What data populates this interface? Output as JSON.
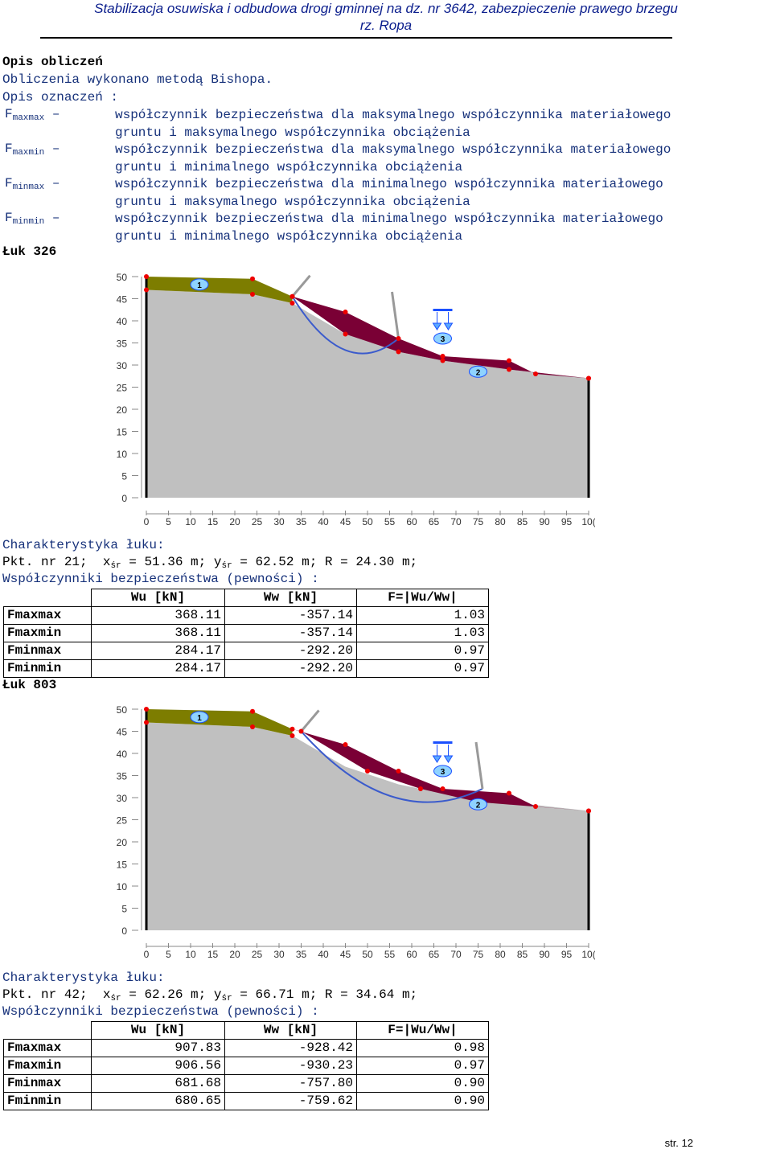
{
  "header": {
    "line1": "Stabilizacja osuwiska i odbudowa drogi gminnej na dz. nr 3642, zabezpieczenie prawego brzegu",
    "line2": "rz. Ropa"
  },
  "intro": {
    "title": "Opis obliczeń",
    "method": "Obliczenia wykonano metodą Bishopa.",
    "legend_title": "Opis oznaczeń :"
  },
  "legend": [
    {
      "sym": "F",
      "sub": "maxmax",
      "dash": "–",
      "l1": "współczynnik bezpieczeństwa dla maksymalnego współczynnika materiałowego",
      "l2": "gruntu i maksymalnego współczynnika obciążenia"
    },
    {
      "sym": "F",
      "sub": "maxmin",
      "dash": "–",
      "l1": "współczynnik bezpieczeństwa dla maksymalnego współczynnika materiałowego",
      "l2": "gruntu i minimalnego współczynnika obciążenia"
    },
    {
      "sym": "F",
      "sub": "minmax",
      "dash": "–",
      "l1": "współczynnik bezpieczeństwa dla minimalnego współczynnika materiałowego",
      "l2": "gruntu i maksymalnego współczynnika obciążenia"
    },
    {
      "sym": "F",
      "sub": "minmin",
      "dash": "–",
      "l1": "współczynnik bezpieczeństwa dla minimalnego współczynnika materiałowego",
      "l2": "gruntu i minimalnego współczynnika obciążenia"
    }
  ],
  "arcs": [
    {
      "title": "Łuk 326",
      "char_title": "Charakterystyka łuku:",
      "pkt": "Pkt. nr 21;",
      "x_label": "x",
      "x_sub": "śr",
      "x_val": " = 51.36 m;",
      "y_label": "y",
      "y_sub": "śr",
      "y_val": " = 62.52 m;",
      "r": "R = 24.30 m;",
      "coef_title": "Współczynniki bezpieczeństwa (pewności) :",
      "headers": [
        "Wu [kN]",
        "Ww [kN]",
        "F=|Wu/Ww|"
      ],
      "rows": [
        {
          "k": "Fmaxmax",
          "wu": "368.11",
          "ww": "-357.14",
          "f": "1.03"
        },
        {
          "k": "Fmaxmin",
          "wu": "368.11",
          "ww": "-357.14",
          "f": "1.03"
        },
        {
          "k": "Fminmax",
          "wu": "284.17",
          "ww": "-292.20",
          "f": "0.97"
        },
        {
          "k": "Fminmin",
          "wu": "284.17",
          "ww": "-292.20",
          "f": "0.97"
        }
      ]
    },
    {
      "title": "Łuk 803",
      "char_title": "Charakterystyka łuku:",
      "pkt": "Pkt. nr 42;",
      "x_label": "x",
      "x_sub": "śr",
      "x_val": " = 62.26 m;",
      "y_label": "y",
      "y_sub": "śr",
      "y_val": " = 66.71 m;",
      "r": "R = 34.64 m;",
      "coef_title": "Współczynniki bezpieczeństwa (pewności) :",
      "headers": [
        "Wu [kN]",
        "Ww [kN]",
        "F=|Wu/Ww|"
      ],
      "rows": [
        {
          "k": "Fmaxmax",
          "wu": "907.83",
          "ww": "-928.42",
          "f": "0.98"
        },
        {
          "k": "Fmaxmin",
          "wu": "906.56",
          "ww": "-930.23",
          "f": "0.97"
        },
        {
          "k": "Fminmax",
          "wu": "681.68",
          "ww": "-757.80",
          "f": "0.90"
        },
        {
          "k": "Fminmin",
          "wu": "680.65",
          "ww": "-759.62",
          "f": "0.90"
        }
      ]
    }
  ],
  "chart_data": [
    {
      "type": "diagram",
      "y_ticks": [
        "0",
        "5",
        "10",
        "15",
        "20",
        "25",
        "30",
        "35",
        "40",
        "45",
        "50"
      ],
      "x_ticks": [
        "0",
        "5",
        "10",
        "15",
        "20",
        "25",
        "30",
        "35",
        "40",
        "45",
        "50",
        "55",
        "60",
        "65",
        "70",
        "75",
        "80",
        "85",
        "90",
        "95",
        "10("
      ],
      "layer_labels": [
        "1",
        "2",
        "3"
      ],
      "colors": {
        "layer1": "#7d7d00",
        "slide": "#7a0035",
        "base": "#c0c0c0",
        "arc": "#3b5bcc"
      }
    },
    {
      "type": "diagram",
      "y_ticks": [
        "0",
        "5",
        "10",
        "15",
        "20",
        "25",
        "30",
        "35",
        "40",
        "45",
        "50"
      ],
      "x_ticks": [
        "0",
        "5",
        "10",
        "15",
        "20",
        "25",
        "30",
        "35",
        "40",
        "45",
        "50",
        "55",
        "60",
        "65",
        "70",
        "75",
        "80",
        "85",
        "90",
        "95",
        "10("
      ],
      "layer_labels": [
        "1",
        "2",
        "3"
      ],
      "colors": {
        "layer1": "#7d7d00",
        "slide": "#7a0035",
        "base": "#c0c0c0",
        "arc": "#3b5bcc"
      }
    }
  ],
  "footer": {
    "page": "str. 12"
  }
}
